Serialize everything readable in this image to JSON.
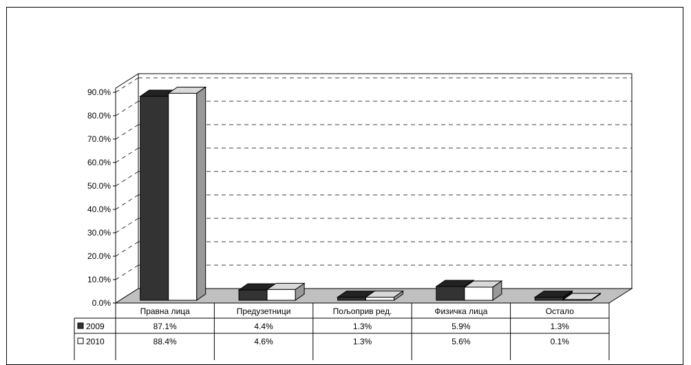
{
  "chart_data": {
    "type": "bar",
    "title": "",
    "xlabel": "",
    "ylabel": "",
    "ylim": [
      0,
      90
    ],
    "yticks": [
      "0.0%",
      "10.0%",
      "20.0%",
      "30.0%",
      "40.0%",
      "50.0%",
      "60.0%",
      "70.0%",
      "80.0%",
      "90.0%"
    ],
    "categories": [
      "Правна лица",
      "Предузетници",
      "Пољоприв ред.",
      "Физичка лица",
      "Остало"
    ],
    "series": [
      {
        "name": "2009",
        "values": [
          87.1,
          4.4,
          1.3,
          5.9,
          1.3
        ],
        "labels": [
          "87.1%",
          "4.4%",
          "1.3%",
          "5.9%",
          "1.3%"
        ],
        "color": "#333333"
      },
      {
        "name": "2010",
        "values": [
          88.4,
          4.6,
          1.3,
          5.6,
          0.1
        ],
        "labels": [
          "88.4%",
          "4.6%",
          "1.3%",
          "5.6%",
          "0.1%"
        ],
        "color": "#ffffff"
      }
    ],
    "grid": true,
    "style": "3d-bar-with-data-table",
    "floor_color": "#c0c0c0"
  }
}
